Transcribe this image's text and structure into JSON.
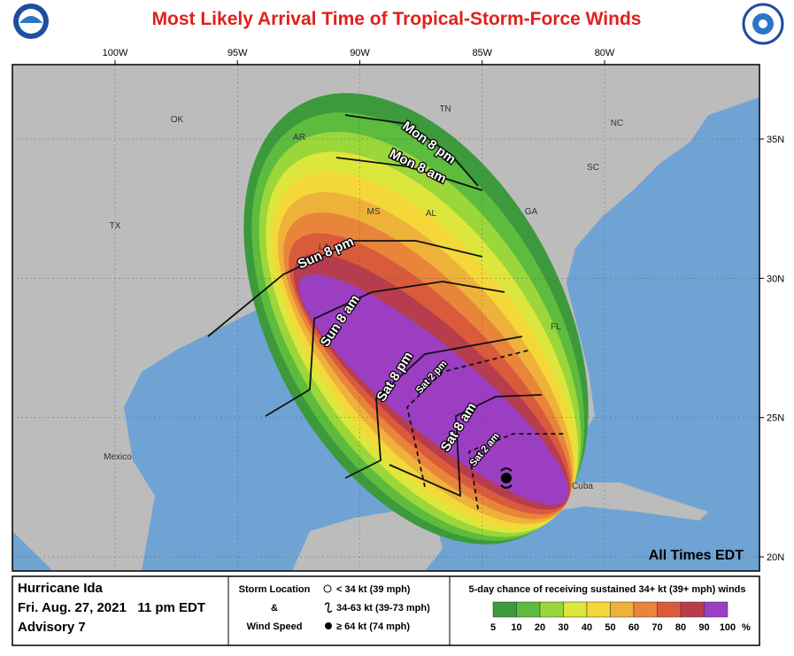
{
  "header": {
    "title": "Most Likely Arrival Time of Tropical-Storm-Force Winds"
  },
  "map": {
    "lon_ticks": [
      {
        "value": -100,
        "label": "100W"
      },
      {
        "value": -95,
        "label": "95W"
      },
      {
        "value": -90,
        "label": "90W"
      },
      {
        "value": -85,
        "label": "85W"
      },
      {
        "value": -80,
        "label": "80W"
      }
    ],
    "lat_ticks": [
      {
        "value": 35,
        "label": "35N"
      },
      {
        "value": 30,
        "label": "30N"
      },
      {
        "value": 25,
        "label": "25N"
      },
      {
        "value": 20,
        "label": "20N"
      }
    ],
    "place_labels": [
      "OK",
      "AR",
      "TN",
      "NC",
      "SC",
      "GA",
      "AL",
      "MS",
      "LA",
      "TX",
      "FL",
      "Mexico",
      "Cuba"
    ],
    "contour_labels": [
      "Mon 8 pm",
      "Mon 8 am",
      "Sun 8 pm",
      "Sun 8 am",
      "Sat 8 pm",
      "Sat 2 pm",
      "Sat 8 am",
      "Sat 2 am"
    ],
    "note": "All Times EDT"
  },
  "legend": {
    "storm": "Hurricane Ida",
    "date": "Fri. Aug. 27, 2021   11 pm EDT",
    "advisory": "Advisory 7",
    "symbol_title": [
      "Storm Location",
      "&",
      "Wind Speed"
    ],
    "symbols": [
      "< 34 kt (39 mph)",
      "34-63 kt (39-73 mph)",
      "≥ 64 kt (74 mph)"
    ],
    "scale_title": "5-day chance of receiving sustained 34+ kt (39+ mph) winds",
    "scale_ticks": [
      5,
      10,
      20,
      30,
      40,
      50,
      60,
      70,
      80,
      90,
      100
    ],
    "scale_unit": "%",
    "scale_colors": [
      "#3c9a3c",
      "#5dbb3e",
      "#9bd63a",
      "#dde63c",
      "#f4d83a",
      "#eeb23a",
      "#e8853a",
      "#da5a3c",
      "#b73c4e",
      "#9b3ec2"
    ]
  }
}
